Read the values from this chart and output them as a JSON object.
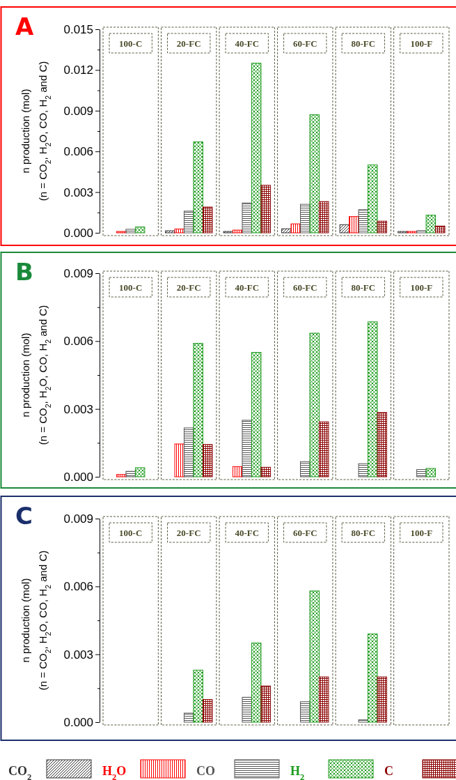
{
  "chart_data": [
    {
      "type": "bar",
      "title": "A",
      "ylabel": "n production (mol)\n(n = CO$_{2}$, H$_{2}$O, CO, H$_{2}$ and C)",
      "categories": [
        "100-C",
        "20-FC",
        "40-FC",
        "60-FC",
        "80-FC",
        "100-F"
      ],
      "ylim": [
        0,
        0.015
      ],
      "yticks": [
        {
          "value": 0,
          "label": "0.000"
        },
        {
          "value": 0.0015,
          "label": null
        },
        {
          "value": 0.003,
          "label": "0.003"
        },
        {
          "value": 0.0045,
          "label": null
        },
        {
          "value": 0.006,
          "label": "0.006"
        },
        {
          "value": 0.0075,
          "label": null
        },
        {
          "value": 0.009,
          "label": "0.009"
        },
        {
          "value": 0.0105,
          "label": null
        },
        {
          "value": 0.012,
          "label": "0.012"
        },
        {
          "value": 0.0135,
          "label": null
        },
        {
          "value": 0.015,
          "label": "0.015"
        }
      ],
      "legend": false,
      "series": [
        {
          "color": "#333333",
          "values": [
            null,
            0.00015,
            0.0001,
            0.0003,
            0.0006,
            0.0001
          ]
        },
        {
          "color": "#ff0000",
          "values": [
            0.0001,
            0.00028,
            0.0002,
            0.00066,
            0.0012,
            0.0001
          ]
        },
        {
          "color": "#555555",
          "values": [
            0.00026,
            0.0016,
            0.0022,
            0.0021,
            0.0017,
            0.00015
          ]
        },
        {
          "color": "#1a9a1a",
          "values": [
            0.00043,
            0.0067,
            0.0125,
            0.0087,
            0.005,
            0.0013
          ]
        },
        {
          "color": "#8b0000",
          "values": [
            null,
            0.0019,
            0.0035,
            0.0023,
            0.00086,
            0.0005
          ]
        }
      ]
    },
    {
      "type": "bar",
      "title": "B",
      "ylabel": "n production (mol)\n(n = CO$_{2}$, H$_{2}$O, CO, H$_{2}$ and C)",
      "categories": [
        "100-C",
        "20-FC",
        "40-FC",
        "60-FC",
        "80-FC",
        "100-F"
      ],
      "ylim": [
        0,
        0.009
      ],
      "yticks": [
        {
          "value": 0,
          "label": "0.000"
        },
        {
          "value": 0.0015,
          "label": null
        },
        {
          "value": 0.003,
          "label": "0.003"
        },
        {
          "value": 0.0045,
          "label": null
        },
        {
          "value": 0.006,
          "label": "0.006"
        },
        {
          "value": 0.0075,
          "label": null
        },
        {
          "value": 0.009,
          "label": "0.009"
        }
      ],
      "legend": false,
      "series": [
        {
          "color": "#333333",
          "values": [
            null,
            null,
            null,
            null,
            null,
            null
          ]
        },
        {
          "color": "#ff0000",
          "values": [
            0.0001,
            0.00145,
            0.00045,
            null,
            null,
            null
          ]
        },
        {
          "color": "#555555",
          "values": [
            0.00024,
            0.00216,
            0.0025,
            0.00067,
            0.00058,
            0.00032
          ]
        },
        {
          "color": "#1a9a1a",
          "values": [
            0.0004,
            0.0059,
            0.0055,
            0.00635,
            0.00685,
            0.00037
          ]
        },
        {
          "color": "#8b0000",
          "values": [
            null,
            0.00143,
            0.00042,
            0.00243,
            0.00284,
            null
          ]
        }
      ]
    },
    {
      "type": "bar",
      "title": "C",
      "ylabel": "n production (mol)\n(n = CO$_{2}$, H$_{2}$O, CO, H$_{2}$ and C)",
      "categories": [
        "100-C",
        "20-FC",
        "40-FC",
        "60-FC",
        "80-FC",
        "100-F"
      ],
      "ylim": [
        0,
        0.009
      ],
      "yticks": [
        {
          "value": 0,
          "label": "0.000"
        },
        {
          "value": 0.0015,
          "label": null
        },
        {
          "value": 0.003,
          "label": "0.003"
        },
        {
          "value": 0.0045,
          "label": null
        },
        {
          "value": 0.006,
          "label": "0.006"
        },
        {
          "value": 0.0075,
          "label": null
        },
        {
          "value": 0.009,
          "label": "0.009"
        }
      ],
      "legend": "bottom",
      "series": [
        {
          "name": "CO$_{2}$",
          "color": "#333333",
          "values": [
            null,
            null,
            null,
            null,
            null,
            null
          ]
        },
        {
          "name": "H$_{2}$O",
          "color": "#ff0000",
          "values": [
            null,
            null,
            null,
            null,
            null,
            null
          ]
        },
        {
          "name": "CO",
          "color": "#555555",
          "values": [
            null,
            0.0004,
            0.0011,
            0.0009,
            0.0001,
            null
          ]
        },
        {
          "name": "H$_{2}$",
          "color": "#1a9a1a",
          "values": [
            null,
            0.0023,
            0.0035,
            0.0058,
            0.0039,
            null
          ]
        },
        {
          "name": "C",
          "color": "#8b0000",
          "values": [
            null,
            0.001,
            0.0016,
            0.002,
            0.002,
            null
          ]
        }
      ]
    }
  ]
}
